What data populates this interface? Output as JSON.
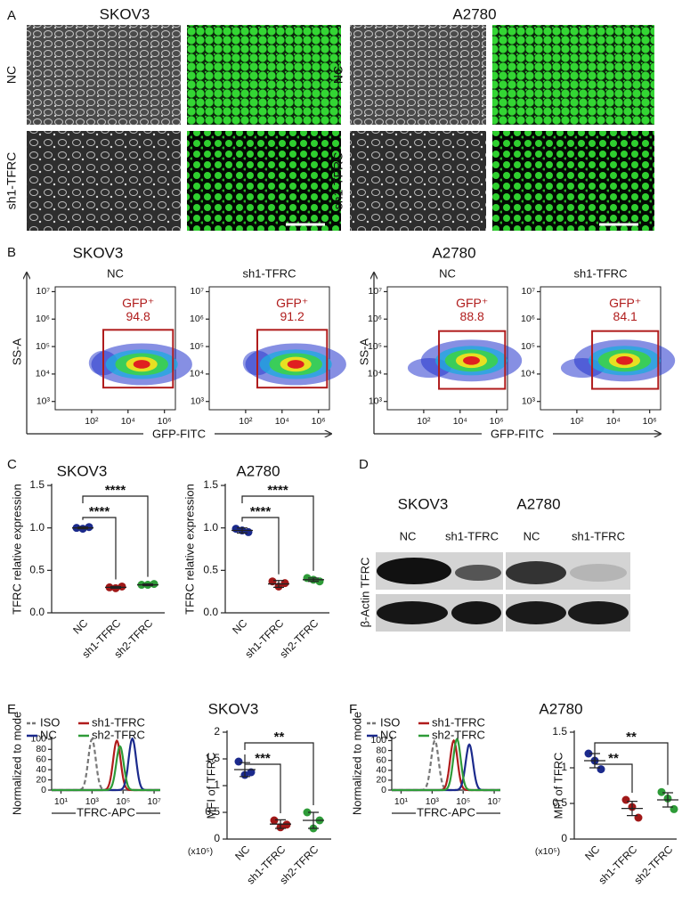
{
  "panel_labels": [
    "A",
    "B",
    "C",
    "D",
    "E",
    "F"
  ],
  "panel_a": {
    "cell_lines": [
      "SKOV3",
      "A2780"
    ],
    "rows": [
      "NC",
      "sh1-TFRC"
    ]
  },
  "panel_b": {
    "cell_lines": [
      "SKOV3",
      "A2780"
    ],
    "conditions": [
      "NC",
      "sh1-TFRC"
    ],
    "y_label": "SS-A",
    "x_label": "GFP-FITC",
    "log": true,
    "xlim": [
      1,
      4000000
    ],
    "ylim": [
      500,
      15000000
    ],
    "xticks": [
      {
        "value": 100,
        "label": "10²"
      },
      {
        "value": 10000,
        "label": "10⁴"
      },
      {
        "value": 1000000,
        "label": "10⁶"
      }
    ],
    "yticks": [
      {
        "value": 1000,
        "label": "10³"
      },
      {
        "value": 10000,
        "label": "10⁴"
      },
      {
        "value": 100000,
        "label": "10⁵"
      },
      {
        "value": 1000000,
        "label": "10⁶"
      },
      {
        "value": 10000000,
        "label": "10⁷"
      }
    ],
    "gate_label": "GFP⁺",
    "gate_values": [
      94.8,
      91.2,
      88.8,
      84.1
    ]
  },
  "panel_d": {
    "cell_lines": [
      "SKOV3",
      "A2780"
    ],
    "lanes": [
      "NC",
      "sh1-TFRC",
      "NC",
      "sh1-TFRC"
    ],
    "row_label": "β-Actin TFRC"
  },
  "chart_data": [
    {
      "type": "dot",
      "title": "SKOV3",
      "y_label": "TFRC relative expression",
      "categories": [
        "NC",
        "sh1-TFRC",
        "sh2-TFRC"
      ],
      "colors": [
        "#1b2a8c",
        "#a01818",
        "#2e9b38"
      ],
      "values": [
        1.0,
        0.3,
        0.33
      ],
      "errors": [
        0.01,
        0.01,
        0.01
      ],
      "points": [
        [
          1.0,
          0.99,
          1.01
        ],
        [
          0.3,
          0.29,
          0.31
        ],
        [
          0.33,
          0.33,
          0.34
        ]
      ],
      "ylim": [
        0,
        1.5
      ],
      "yticks": [
        {
          "value": 0,
          "label": "0.0"
        },
        0.5,
        {
          "value": 1,
          "label": "1.0"
        },
        1.5
      ],
      "significance": [
        {
          "pair": [
            "NC",
            "sh1-TFRC"
          ],
          "label": "****"
        },
        {
          "pair": [
            "NC",
            "sh2-TFRC"
          ],
          "label": "****"
        }
      ]
    },
    {
      "type": "dot",
      "title": "A2780",
      "y_label": "TFRC relative expression",
      "categories": [
        "NC",
        "sh1-TFRC",
        "sh2-TFRC"
      ],
      "colors": [
        "#1b2a8c",
        "#a01818",
        "#2e9b38"
      ],
      "values": [
        0.97,
        0.34,
        0.39
      ],
      "errors": [
        0.03,
        0.04,
        0.02
      ],
      "points": [
        [
          0.99,
          0.97,
          0.95
        ],
        [
          0.37,
          0.31,
          0.35
        ],
        [
          0.41,
          0.39,
          0.37
        ]
      ],
      "ylim": [
        0,
        1.5
      ],
      "yticks": [
        {
          "value": 0,
          "label": "0.0"
        },
        0.5,
        {
          "value": 1,
          "label": "1.0"
        },
        1.5
      ],
      "significance": [
        {
          "pair": [
            "NC",
            "sh1-TFRC"
          ],
          "label": "****"
        },
        {
          "pair": [
            "NC",
            "sh2-TFRC"
          ],
          "label": "****"
        }
      ]
    },
    {
      "type": "density",
      "title": "SKOV3",
      "x_label": "TFRC-APC",
      "y_label": "Normalized to mode",
      "log_x": true,
      "xlim": [
        2.5,
        25000000
      ],
      "ylim": [
        0,
        105
      ],
      "xticks": [
        {
          "value": 10,
          "label": "10¹"
        },
        {
          "value": 1000,
          "label": "10³"
        },
        {
          "value": 100000,
          "label": "10⁵"
        },
        {
          "value": 10000000,
          "label": "10⁷"
        }
      ],
      "yticks": [
        0,
        20,
        40,
        60,
        80,
        100
      ],
      "series": [
        {
          "name": "ISO",
          "color": "#777777",
          "dashed": true,
          "peak_x": 1000,
          "peak_y": 100
        },
        {
          "name": "sh1-TFRC",
          "color": "#b01c1c",
          "peak_x": 40000,
          "peak_y": 97
        },
        {
          "name": "NC",
          "color": "#1b2a8c",
          "peak_x": 400000,
          "peak_y": 101
        },
        {
          "name": "sh2-TFRC",
          "color": "#2e9b38",
          "peak_x": 63000,
          "peak_y": 86
        }
      ]
    },
    {
      "type": "dot",
      "y_label": "MFI of TFRC",
      "unit_label": "(x10⁵)",
      "categories": [
        "NC",
        "sh1-TFRC",
        "sh2-TFRC"
      ],
      "colors": [
        "#1b2a8c",
        "#a01818",
        "#2e9b38"
      ],
      "values": [
        1.3,
        0.28,
        0.35
      ],
      "errors": [
        0.13,
        0.08,
        0.15
      ],
      "points": [
        [
          1.45,
          1.2,
          1.25
        ],
        [
          0.35,
          0.22,
          0.27
        ],
        [
          0.5,
          0.2,
          0.35
        ]
      ],
      "ylim": [
        0,
        2
      ],
      "yticks": [
        0,
        0.5,
        1,
        1.5,
        2
      ],
      "significance": [
        {
          "pair": [
            "NC",
            "sh1-TFRC"
          ],
          "label": "***"
        },
        {
          "pair": [
            "NC",
            "sh2-TFRC"
          ],
          "label": "**"
        }
      ]
    },
    {
      "type": "density",
      "title": "A2780",
      "x_label": "TFRC-APC",
      "y_label": "Normalized to mode",
      "log_x": true,
      "xlim": [
        2.5,
        25000000
      ],
      "ylim": [
        0,
        108
      ],
      "xticks": [
        {
          "value": 10,
          "label": "10¹"
        },
        {
          "value": 1000,
          "label": "10³"
        },
        {
          "value": 100000,
          "label": "10⁵"
        },
        {
          "value": 10000000,
          "label": "10⁷"
        }
      ],
      "yticks": [
        0,
        20,
        40,
        60,
        80,
        100
      ],
      "series": [
        {
          "name": "ISO",
          "color": "#777777",
          "dashed": true,
          "peak_x": 1500,
          "peak_y": 100
        },
        {
          "name": "sh1-TFRC",
          "color": "#b01c1c",
          "peak_x": 25000,
          "peak_y": 100
        },
        {
          "name": "NC",
          "color": "#1b2a8c",
          "peak_x": 250000,
          "peak_y": 92
        },
        {
          "name": "sh2-TFRC",
          "color": "#2e9b38",
          "peak_x": 40000,
          "peak_y": 103
        }
      ]
    },
    {
      "type": "dot",
      "y_label": "MFI of TFRC",
      "unit_label": "(x10⁵)",
      "categories": [
        "NC",
        "sh1-TFRC",
        "sh2-TFRC"
      ],
      "colors": [
        "#1b2a8c",
        "#a01818",
        "#2e9b38"
      ],
      "values": [
        1.1,
        0.43,
        0.55
      ],
      "errors": [
        0.1,
        0.1,
        0.1
      ],
      "points": [
        [
          1.2,
          1.1,
          0.98
        ],
        [
          0.55,
          0.45,
          0.3
        ],
        [
          0.66,
          0.57,
          0.42
        ]
      ],
      "ylim": [
        0,
        1.5
      ],
      "yticks": [
        0,
        0.5,
        1,
        1.5
      ],
      "significance": [
        {
          "pair": [
            "NC",
            "sh1-TFRC"
          ],
          "label": "**"
        },
        {
          "pair": [
            "NC",
            "sh2-TFRC"
          ],
          "label": "**"
        }
      ]
    }
  ]
}
